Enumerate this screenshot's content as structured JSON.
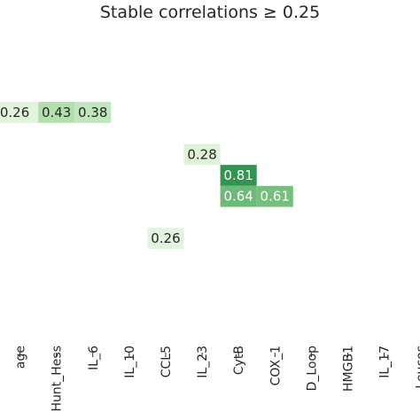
{
  "chart_data": {
    "type": "heatmap",
    "title": "Stable correlations ",
    "threshold": "≥ 0.25",
    "x_labels": [
      "age",
      "Hunt_Hess",
      "IL_6",
      "IL_10",
      "CCL5",
      "IL_23",
      "CytB",
      "COX_1",
      "D_Loop",
      "HMGB1",
      "IL_17",
      "Leucos"
    ],
    "cells": [
      {
        "row": 0,
        "col": 0,
        "value": 0.26,
        "label": "0.26"
      },
      {
        "row": 0,
        "col": 1,
        "value": 0.43,
        "label": "0.43"
      },
      {
        "row": 0,
        "col": 2,
        "value": 0.38,
        "label": "0.38"
      },
      {
        "row": 2,
        "col": 5,
        "value": 0.28,
        "label": "0.28"
      },
      {
        "row": 3,
        "col": 6,
        "value": 0.81,
        "label": "0.81"
      },
      {
        "row": 4,
        "col": 6,
        "value": 0.64,
        "label": "0.64"
      },
      {
        "row": 4,
        "col": 7,
        "value": 0.61,
        "label": "0.61"
      },
      {
        "row": 6,
        "col": 4,
        "value": 0.26,
        "label": "0.26"
      }
    ],
    "colormap": {
      "low": "#e5f5e0",
      "mid": "#a1d99b",
      "high": "#238b45"
    },
    "grid": false,
    "legend": "none"
  }
}
